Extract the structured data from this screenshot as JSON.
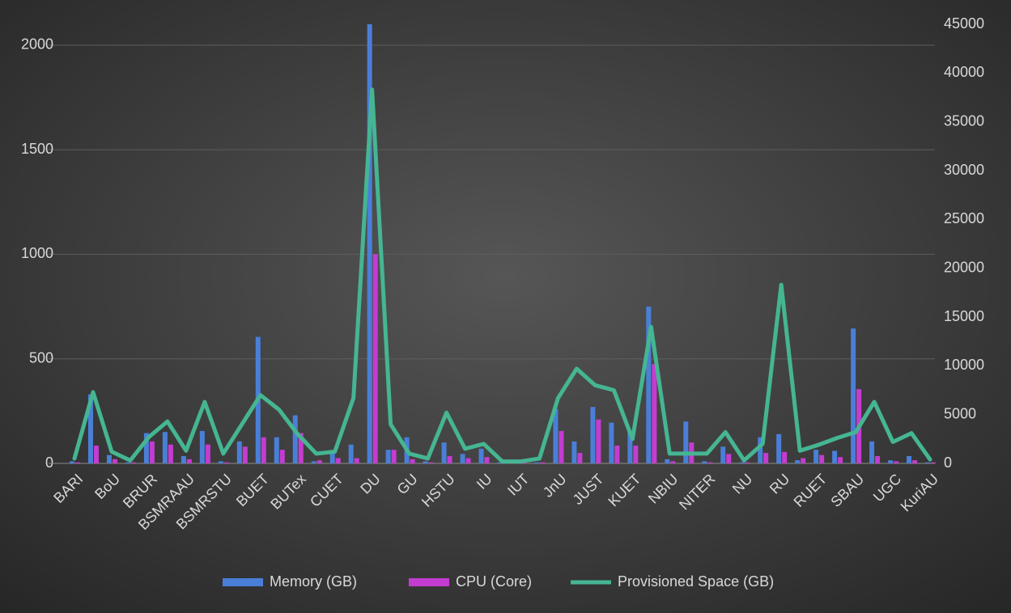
{
  "chart_data": {
    "type": "combo",
    "categories": [
      "BARI",
      null,
      "BoU",
      null,
      "BRUR",
      null,
      "BSMRAAU",
      null,
      "BSMRSTU",
      null,
      "BUET",
      null,
      "BUTex",
      null,
      "CUET",
      null,
      "DU",
      null,
      "GU",
      null,
      "HSTU",
      null,
      "IU",
      null,
      "IUT",
      null,
      "JnU",
      null,
      "JUST",
      null,
      "KUET",
      null,
      "NBIU",
      null,
      "NITER",
      null,
      "NU",
      null,
      "RU",
      null,
      "RUET",
      null,
      "SBAU",
      null,
      "UGC",
      null,
      "KuriAU"
    ],
    "series": [
      {
        "name": "Memory (GB)",
        "type": "bar",
        "color": "#4a7fd8",
        "values": [
          10,
          330,
          40,
          5,
          145,
          150,
          35,
          155,
          10,
          105,
          605,
          125,
          230,
          10,
          55,
          90,
          2100,
          65,
          125,
          10,
          100,
          45,
          70,
          5,
          5,
          5,
          260,
          105,
          270,
          195,
          150,
          750,
          20,
          200,
          10,
          80,
          5,
          125,
          140,
          15,
          65,
          60,
          645,
          105,
          15,
          35,
          5
        ]
      },
      {
        "name": "CPU (Core)",
        "type": "bar",
        "color": "#c43cd0",
        "values": [
          5,
          85,
          20,
          5,
          105,
          90,
          20,
          90,
          5,
          80,
          125,
          65,
          145,
          15,
          25,
          25,
          1000,
          65,
          20,
          5,
          35,
          25,
          30,
          5,
          5,
          5,
          155,
          50,
          210,
          85,
          85,
          475,
          10,
          100,
          5,
          45,
          5,
          50,
          55,
          25,
          40,
          30,
          355,
          35,
          10,
          15,
          5
        ]
      },
      {
        "name": "Provisioned Space (GB)",
        "type": "line",
        "axis": "y2",
        "color": "#45b592",
        "values": [
          500,
          7300,
          1200,
          300,
          2700,
          4300,
          1300,
          6300,
          1000,
          4000,
          7000,
          5500,
          3000,
          1000,
          1200,
          6700,
          38300,
          4000,
          1000,
          500,
          5200,
          1500,
          2000,
          200,
          200,
          500,
          6700,
          9700,
          8000,
          7500,
          2500,
          14000,
          1000,
          1000,
          1000,
          3200,
          300,
          2000,
          18300,
          1300,
          1900,
          2600,
          3200,
          6300,
          2200,
          3100,
          400
        ]
      }
    ],
    "ylim": [
      0,
      2100
    ],
    "yticks": [
      0,
      500,
      1000,
      1500,
      2000
    ],
    "y2lim": [
      0,
      45000
    ],
    "y2ticks": [
      0,
      5000,
      10000,
      15000,
      20000,
      25000,
      30000,
      35000,
      40000,
      45000
    ],
    "grid": true,
    "legend": "bottom"
  }
}
